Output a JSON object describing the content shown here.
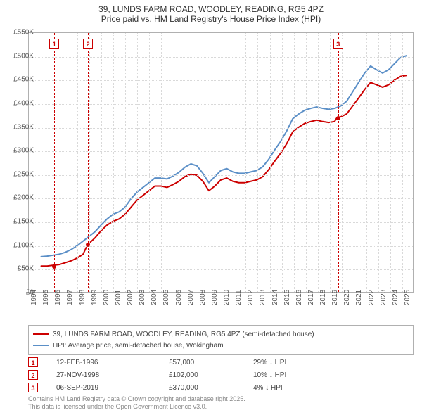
{
  "title": {
    "line1": "39, LUNDS FARM ROAD, WOODLEY, READING, RG5 4PZ",
    "line2": "Price paid vs. HM Land Registry's House Price Index (HPI)"
  },
  "chart": {
    "type": "line",
    "background_color": "#ffffff",
    "grid_color": "#d9d9d9",
    "border_color": "#b0b0b0",
    "xlim": [
      1994,
      2026
    ],
    "ylim": [
      0,
      550
    ],
    "ytick_step": 50,
    "ytick_prefix": "£",
    "ytick_suffix": "K",
    "xlabels": [
      "1994",
      "1995",
      "1996",
      "1997",
      "1998",
      "1999",
      "2000",
      "2001",
      "2002",
      "2003",
      "2004",
      "2005",
      "2006",
      "2007",
      "2008",
      "2009",
      "2010",
      "2011",
      "2012",
      "2013",
      "2014",
      "2015",
      "2016",
      "2017",
      "2018",
      "2019",
      "2020",
      "2021",
      "2022",
      "2023",
      "2024",
      "2025"
    ],
    "label_fontsize": 10,
    "title_fontsize": 12,
    "series": [
      {
        "name": "property",
        "label": "39, LUNDS FARM ROAD, WOODLEY, READING, RG5 4PZ (semi-detached house)",
        "color": "#cc0000",
        "line_width": 2,
        "points": [
          [
            1995.0,
            55
          ],
          [
            1995.5,
            55
          ],
          [
            1996.1,
            57
          ],
          [
            1996.5,
            58
          ],
          [
            1997.0,
            62
          ],
          [
            1997.5,
            66
          ],
          [
            1998.0,
            72
          ],
          [
            1998.5,
            80
          ],
          [
            1998.9,
            102
          ],
          [
            1999.0,
            103
          ],
          [
            1999.5,
            115
          ],
          [
            2000.0,
            130
          ],
          [
            2000.5,
            142
          ],
          [
            2001.0,
            150
          ],
          [
            2001.5,
            155
          ],
          [
            2002.0,
            165
          ],
          [
            2002.5,
            180
          ],
          [
            2003.0,
            195
          ],
          [
            2003.5,
            205
          ],
          [
            2004.0,
            215
          ],
          [
            2004.5,
            225
          ],
          [
            2005.0,
            225
          ],
          [
            2005.5,
            222
          ],
          [
            2006.0,
            228
          ],
          [
            2006.5,
            235
          ],
          [
            2007.0,
            245
          ],
          [
            2007.5,
            250
          ],
          [
            2008.0,
            248
          ],
          [
            2008.5,
            235
          ],
          [
            2009.0,
            215
          ],
          [
            2009.5,
            225
          ],
          [
            2010.0,
            238
          ],
          [
            2010.5,
            242
          ],
          [
            2011.0,
            235
          ],
          [
            2011.5,
            232
          ],
          [
            2012.0,
            232
          ],
          [
            2012.5,
            235
          ],
          [
            2013.0,
            238
          ],
          [
            2013.5,
            245
          ],
          [
            2014.0,
            260
          ],
          [
            2014.5,
            278
          ],
          [
            2015.0,
            295
          ],
          [
            2015.5,
            315
          ],
          [
            2016.0,
            340
          ],
          [
            2016.5,
            350
          ],
          [
            2017.0,
            358
          ],
          [
            2017.5,
            362
          ],
          [
            2018.0,
            365
          ],
          [
            2018.5,
            362
          ],
          [
            2019.0,
            360
          ],
          [
            2019.5,
            362
          ],
          [
            2019.68,
            370
          ],
          [
            2020.0,
            372
          ],
          [
            2020.5,
            378
          ],
          [
            2021.0,
            395
          ],
          [
            2021.5,
            412
          ],
          [
            2022.0,
            430
          ],
          [
            2022.5,
            445
          ],
          [
            2023.0,
            440
          ],
          [
            2023.5,
            435
          ],
          [
            2024.0,
            440
          ],
          [
            2024.5,
            450
          ],
          [
            2025.0,
            458
          ],
          [
            2025.5,
            460
          ]
        ]
      },
      {
        "name": "hpi",
        "label": "HPI: Average price, semi-detached house, Wokingham",
        "color": "#5b8fc7",
        "line_width": 2,
        "points": [
          [
            1995.0,
            75
          ],
          [
            1995.5,
            76
          ],
          [
            1996.0,
            78
          ],
          [
            1996.5,
            80
          ],
          [
            1997.0,
            84
          ],
          [
            1997.5,
            90
          ],
          [
            1998.0,
            98
          ],
          [
            1998.5,
            108
          ],
          [
            1999.0,
            118
          ],
          [
            1999.5,
            128
          ],
          [
            2000.0,
            142
          ],
          [
            2000.5,
            155
          ],
          [
            2001.0,
            165
          ],
          [
            2001.5,
            170
          ],
          [
            2002.0,
            180
          ],
          [
            2002.5,
            198
          ],
          [
            2003.0,
            212
          ],
          [
            2003.5,
            222
          ],
          [
            2004.0,
            232
          ],
          [
            2004.5,
            242
          ],
          [
            2005.0,
            242
          ],
          [
            2005.5,
            240
          ],
          [
            2006.0,
            246
          ],
          [
            2006.5,
            254
          ],
          [
            2007.0,
            265
          ],
          [
            2007.5,
            272
          ],
          [
            2008.0,
            268
          ],
          [
            2008.5,
            252
          ],
          [
            2009.0,
            232
          ],
          [
            2009.5,
            245
          ],
          [
            2010.0,
            258
          ],
          [
            2010.5,
            262
          ],
          [
            2011.0,
            255
          ],
          [
            2011.5,
            252
          ],
          [
            2012.0,
            252
          ],
          [
            2012.5,
            255
          ],
          [
            2013.0,
            258
          ],
          [
            2013.5,
            266
          ],
          [
            2014.0,
            282
          ],
          [
            2014.5,
            302
          ],
          [
            2015.0,
            320
          ],
          [
            2015.5,
            342
          ],
          [
            2016.0,
            368
          ],
          [
            2016.5,
            378
          ],
          [
            2017.0,
            386
          ],
          [
            2017.5,
            390
          ],
          [
            2018.0,
            393
          ],
          [
            2018.5,
            390
          ],
          [
            2019.0,
            388
          ],
          [
            2019.5,
            390
          ],
          [
            2020.0,
            395
          ],
          [
            2020.5,
            405
          ],
          [
            2021.0,
            425
          ],
          [
            2021.5,
            445
          ],
          [
            2022.0,
            465
          ],
          [
            2022.5,
            480
          ],
          [
            2023.0,
            472
          ],
          [
            2023.5,
            465
          ],
          [
            2024.0,
            472
          ],
          [
            2024.5,
            485
          ],
          [
            2025.0,
            498
          ],
          [
            2025.5,
            502
          ]
        ]
      }
    ],
    "sale_markers": [
      {
        "n": "1",
        "year": 1996.12,
        "price": 57,
        "color": "#cc0000"
      },
      {
        "n": "2",
        "year": 1998.91,
        "price": 102,
        "color": "#cc0000"
      },
      {
        "n": "3",
        "year": 2019.68,
        "price": 370,
        "color": "#cc0000"
      }
    ]
  },
  "legend": {
    "rows": [
      {
        "color": "#cc0000",
        "label": "39, LUNDS FARM ROAD, WOODLEY, READING, RG5 4PZ (semi-detached house)"
      },
      {
        "color": "#5b8fc7",
        "label": "HPI: Average price, semi-detached house, Wokingham"
      }
    ]
  },
  "sales_table": {
    "rows": [
      {
        "n": "1",
        "color": "#cc0000",
        "date": "12-FEB-1996",
        "price": "£57,000",
        "delta": "29% ↓ HPI"
      },
      {
        "n": "2",
        "color": "#cc0000",
        "date": "27-NOV-1998",
        "price": "£102,000",
        "delta": "10% ↓ HPI"
      },
      {
        "n": "3",
        "color": "#cc0000",
        "date": "06-SEP-2019",
        "price": "£370,000",
        "delta": "4% ↓ HPI"
      }
    ]
  },
  "footer": {
    "line1": "Contains HM Land Registry data © Crown copyright and database right 2025.",
    "line2": "This data is licensed under the Open Government Licence v3.0."
  }
}
